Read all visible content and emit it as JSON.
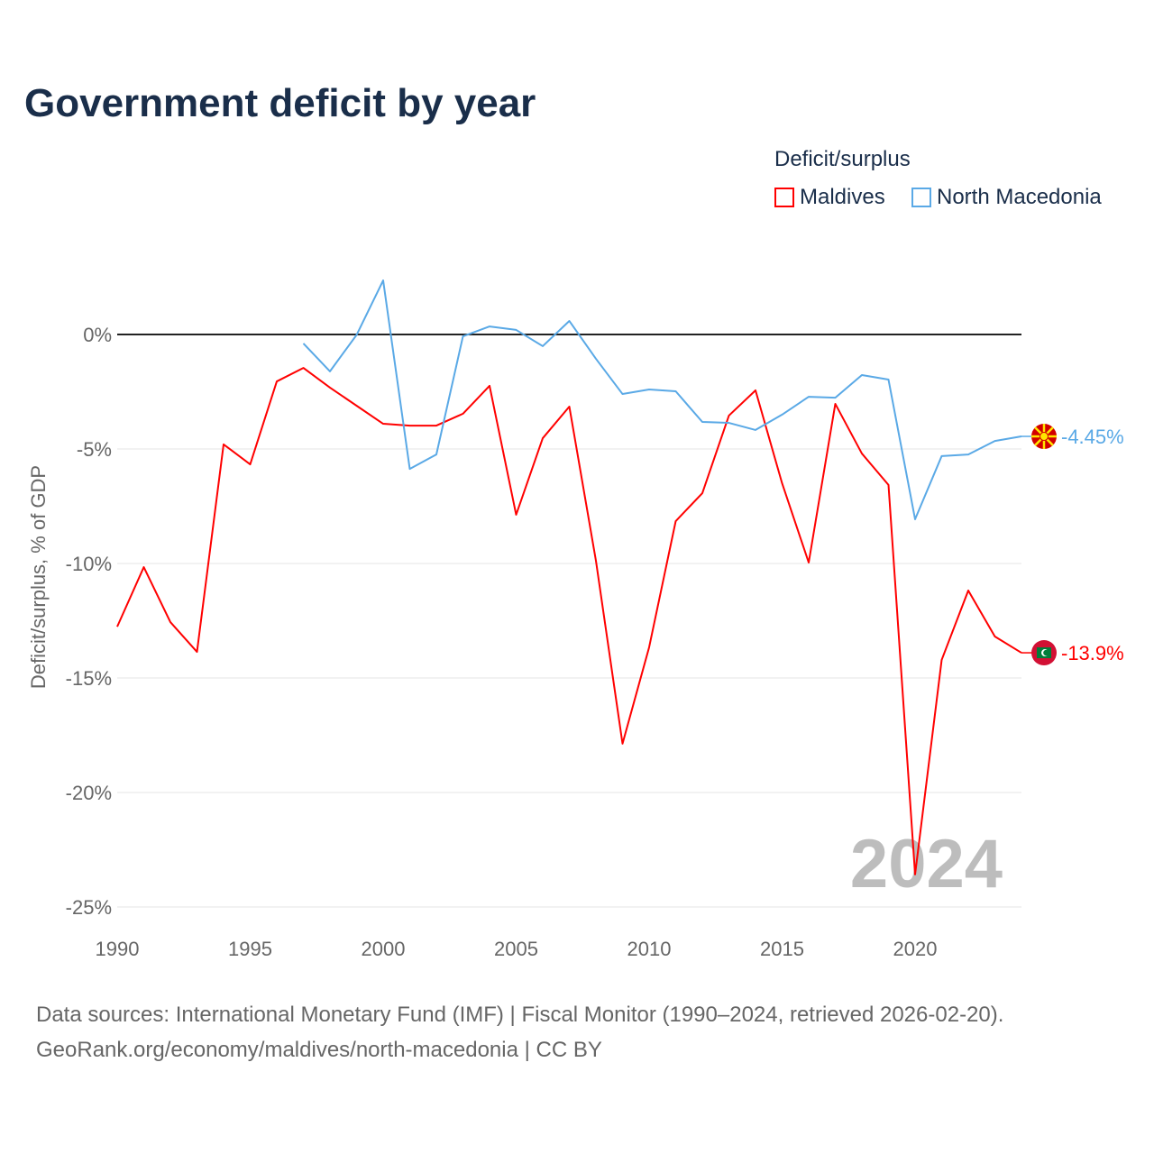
{
  "chart_data": {
    "type": "line",
    "title": "Government deficit by year",
    "ylabel": "Deficit/surplus, % of GDP",
    "xlabel": "",
    "xlim": [
      1990,
      2024
    ],
    "ylim": [
      -25,
      3
    ],
    "x_ticks": [
      "1990",
      "1995",
      "2000",
      "2005",
      "2010",
      "2015",
      "2020"
    ],
    "y_ticks": [
      {
        "v": 0,
        "label": "0%"
      },
      {
        "v": -5,
        "label": "-5%"
      },
      {
        "v": -10,
        "label": "-10%"
      },
      {
        "v": -15,
        "label": "-15%"
      },
      {
        "v": -20,
        "label": "-20%"
      },
      {
        "v": -25,
        "label": "-25%"
      }
    ],
    "legend_title": "Deficit/surplus",
    "legend_position": "top-right",
    "year_watermark": "2024",
    "series": [
      {
        "name": "Maldives",
        "color": "#ff0000",
        "end_label": "-13.9%",
        "start_year": 1990,
        "values": [
          -12.76,
          -10.16,
          -12.56,
          -13.86,
          -4.8,
          -5.67,
          -2.05,
          -1.46,
          -2.32,
          -3.11,
          -3.9,
          -3.98,
          -3.98,
          -3.46,
          -2.24,
          -7.87,
          -4.53,
          -3.15,
          -9.88,
          -17.87,
          -13.66,
          -8.15,
          -6.93,
          -3.54,
          -2.44,
          -6.5,
          -9.96,
          -3.03,
          -5.2,
          -6.57,
          -23.58,
          -14.21,
          -11.18,
          -13.19,
          -13.9
        ]
      },
      {
        "name": "North Macedonia",
        "color": "#5aa9e6",
        "end_label": "-4.45%",
        "start_year": 1997,
        "values": [
          -0.39,
          -1.61,
          -0.02,
          2.36,
          -5.87,
          -5.24,
          -0.08,
          0.35,
          0.2,
          -0.51,
          0.59,
          -1.06,
          -2.6,
          -2.4,
          -2.48,
          -3.82,
          -3.86,
          -4.17,
          -3.5,
          -2.72,
          -2.76,
          -1.77,
          -1.97,
          -8.07,
          -5.31,
          -5.24,
          -4.65,
          -4.45
        ]
      }
    ]
  },
  "footer": {
    "line1": "Data sources: International Monetary Fund (IMF) | Fiscal Monitor (1990–2024, retrieved 2026-02-20).",
    "line2": "GeoRank.org/economy/maldives/north-macedonia | CC BY"
  }
}
